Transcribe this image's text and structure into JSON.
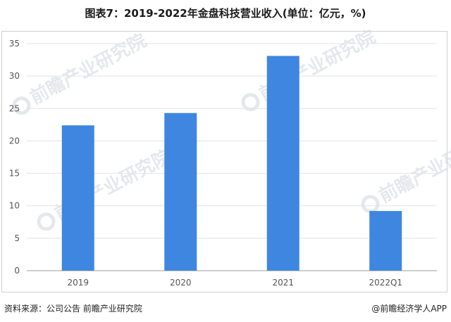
{
  "title": "图表7：2019-2022年金盘科技营业收入(单位：亿元，%)",
  "watermark": {
    "text": "前瞻产业研究院"
  },
  "footer": {
    "source": "资料来源：公司公告 前瞻产业研究院",
    "brand": "@前瞻经济学人APP"
  },
  "colors": {
    "bar": "#3f86e0",
    "grid": "#e3e3e3",
    "axis": "#9e9e9e",
    "tick": "#555555"
  },
  "chart_data": {
    "type": "bar",
    "categories": [
      "2019",
      "2020",
      "2021",
      "2022Q1"
    ],
    "series": [
      {
        "values": [
          22.4,
          24.3,
          33.1,
          9.2
        ]
      }
    ],
    "title": "图表7：2019-2022年金盘科技营业收入(单位：亿元，%)",
    "xlabel": "",
    "ylabel": "",
    "ylim": [
      0,
      35
    ],
    "yticks": [
      0,
      5,
      10,
      15,
      20,
      25,
      30,
      35
    ],
    "grid": true,
    "legend": "none"
  }
}
